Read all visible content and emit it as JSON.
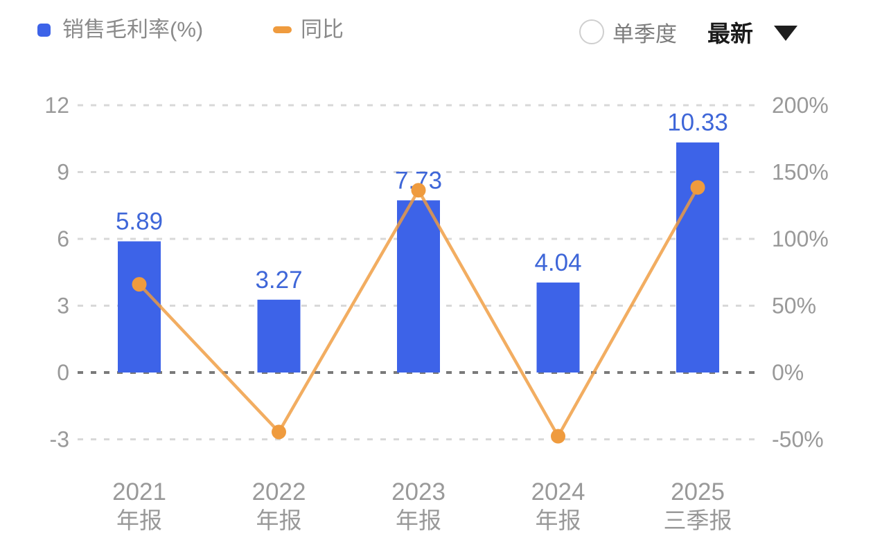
{
  "header": {
    "legend_bar": {
      "label": "销售毛利率(%)",
      "marker": "square-icon",
      "color": "#3D63E8"
    },
    "legend_line": {
      "label": "同比",
      "marker": "dash-icon",
      "color": "#EF9B3E"
    },
    "quarter_label": "单季度",
    "quarter_checked": false,
    "period_value": "最新",
    "period_icon": "caret-down-icon"
  },
  "chart_data": {
    "type": "bar+line",
    "categories": [
      {
        "line1": "2021",
        "line2": "年报"
      },
      {
        "line1": "2022",
        "line2": "年报"
      },
      {
        "line1": "2023",
        "line2": "年报"
      },
      {
        "line1": "2024",
        "line2": "年报"
      },
      {
        "line1": "2025",
        "line2": "三季报"
      }
    ],
    "series": [
      {
        "name": "销售毛利率(%)",
        "type": "bar",
        "axis": "left",
        "color": "#3D63E8",
        "values": [
          5.89,
          3.27,
          7.73,
          4.04,
          10.33
        ],
        "labels": [
          "5.89",
          "3.27",
          "7.73",
          "4.04",
          "10.33"
        ]
      },
      {
        "name": "同比",
        "type": "line",
        "axis": "right",
        "color": "#EF9B3E",
        "values": [
          66,
          -44.5,
          136.4,
          -47.7,
          138.5
        ]
      }
    ],
    "left_axis": {
      "ticks": [
        12,
        9,
        6,
        3,
        0,
        -3
      ],
      "range": [
        -3,
        12
      ]
    },
    "right_axis": {
      "ticks": [
        "200%",
        "150%",
        "100%",
        "50%",
        "0%",
        "-50%"
      ],
      "range": [
        -50,
        200
      ]
    },
    "grid": "dashed-horizontal",
    "legend_position": "top-left"
  },
  "colors": {
    "bar_fill": "#3D63E8",
    "value_label": "#3E66D8",
    "line_stroke": "#EF9B3E",
    "axis_text": "#999999",
    "x_label_text": "#999999",
    "grid_line": "#D8D8D8",
    "zero_line": "#7A7A7A",
    "background": "#FFFFFF"
  }
}
